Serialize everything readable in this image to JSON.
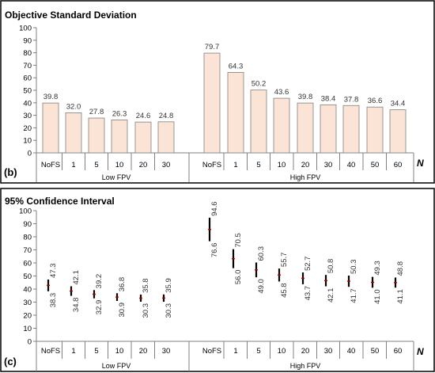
{
  "charts": {
    "bar": {
      "title": "Objective Standard Deviation",
      "panel_label": "(b)",
      "n_label": "N",
      "group_labels": [
        "Low FPV",
        "High FPV"
      ],
      "colors": {
        "bar_fill": "#fbe4d5",
        "bar_stroke": "#7f7f7f",
        "axis": "#808080"
      }
    },
    "ci": {
      "title": "95% Confidence Interval",
      "panel_label": "(c)",
      "n_label": "N",
      "group_labels": [
        "Low FPV",
        "High FPV"
      ],
      "colors": {
        "whisker": "#000000",
        "mean": "#c00000",
        "axis": "#808080"
      }
    }
  },
  "chart_data": [
    {
      "type": "bar",
      "title": "Objective Standard Deviation",
      "xlabel": "N",
      "ylim": [
        0,
        100
      ],
      "yticks": [
        0,
        10,
        20,
        30,
        40,
        50,
        60,
        70,
        80,
        90,
        100
      ],
      "groups": [
        {
          "name": "Low FPV",
          "categories": [
            "NoFS",
            "1",
            "5",
            "10",
            "20",
            "30"
          ],
          "values": [
            39.8,
            32.0,
            27.8,
            26.3,
            24.6,
            24.8
          ],
          "labels": [
            "39.8",
            "32.0",
            "27.8",
            "26.3",
            "24.6",
            "24.8"
          ]
        },
        {
          "name": "High FPV",
          "categories": [
            "NoFS",
            "1",
            "5",
            "10",
            "20",
            "30",
            "40",
            "50",
            "60"
          ],
          "values": [
            79.7,
            64.3,
            50.2,
            43.6,
            39.8,
            38.4,
            37.8,
            36.6,
            34.4
          ],
          "labels": [
            "79.7",
            "64.3",
            "50.2",
            "43.6",
            "39.8",
            "38.4",
            "37.8",
            "36.6",
            "34.4"
          ]
        }
      ]
    },
    {
      "type": "errorbar",
      "title": "95% Confidence Interval",
      "xlabel": "N",
      "ylim": [
        0,
        100
      ],
      "yticks": [
        0,
        10,
        20,
        30,
        40,
        50,
        60,
        70,
        80,
        90,
        100
      ],
      "groups": [
        {
          "name": "Low FPV",
          "categories": [
            "NoFS",
            "1",
            "5",
            "10",
            "20",
            "30"
          ],
          "upper": [
            47.3,
            42.1,
            39.2,
            36.8,
            35.8,
            35.9
          ],
          "lower": [
            38.3,
            34.8,
            32.9,
            30.9,
            30.3,
            30.3
          ],
          "upper_labels": [
            "47.3",
            "42.1",
            "39.2",
            "36.8",
            "35.8",
            "35.9"
          ],
          "lower_labels": [
            "38.3",
            "34.8",
            "32.9",
            "30.9",
            "30.3",
            "30.3"
          ]
        },
        {
          "name": "High FPV",
          "categories": [
            "NoFS",
            "1",
            "5",
            "10",
            "20",
            "30",
            "40",
            "50",
            "60"
          ],
          "upper": [
            94.6,
            70.5,
            60.3,
            55.7,
            52.7,
            50.8,
            50.3,
            49.3,
            48.8
          ],
          "lower": [
            76.6,
            56.0,
            49.0,
            45.8,
            43.7,
            42.1,
            41.7,
            41.0,
            41.1
          ],
          "upper_labels": [
            "94.6",
            "70.5",
            "60.3",
            "55.7",
            "52.7",
            "50.8",
            "50.3",
            "49.3",
            "48.8"
          ],
          "lower_labels": [
            "76.6",
            "56.0",
            "49.0",
            "45.8",
            "43.7",
            "42.1",
            "41.7",
            "41.0",
            "41.1"
          ]
        }
      ]
    }
  ]
}
